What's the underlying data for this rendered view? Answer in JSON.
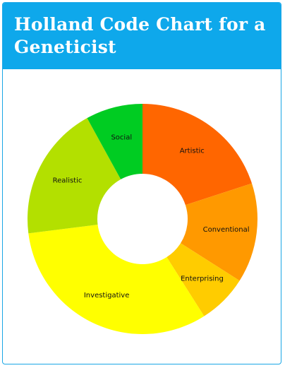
{
  "header": {
    "title": "Holland Code Chart for a Geneticist",
    "background_color": "#0ea8eb"
  },
  "chart_data": {
    "type": "pie",
    "title": "Holland Code Chart for a Geneticist",
    "donut": true,
    "slices": [
      {
        "label": "Artistic",
        "value": 20,
        "color": "#ff6600"
      },
      {
        "label": "Conventional",
        "value": 14,
        "color": "#ff9900"
      },
      {
        "label": "Enterprising",
        "value": 7,
        "color": "#ffcc00"
      },
      {
        "label": "Investigative",
        "value": 32,
        "color": "#ffff00"
      },
      {
        "label": "Realistic",
        "value": 19,
        "color": "#b3e000"
      },
      {
        "label": "Social",
        "value": 8,
        "color": "#00cc22"
      }
    ],
    "legend": false
  }
}
